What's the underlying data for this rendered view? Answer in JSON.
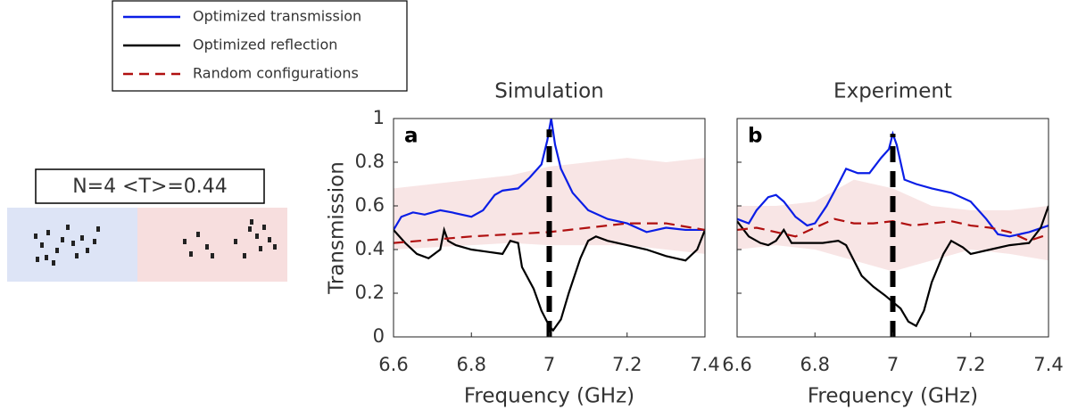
{
  "inset": {
    "label": "N=4 <T>=0.44"
  },
  "chart_data": [
    {
      "type": "line",
      "title": "Simulation",
      "label": "a",
      "x_label": "Frequency (GHz)",
      "y_label": "Transmission",
      "xlim": [
        6.6,
        7.4
      ],
      "xticks": [
        6.6,
        6.8,
        7,
        7.2,
        7.4
      ],
      "ylim": [
        0,
        1
      ],
      "yticks": [
        0,
        0.2,
        0.4,
        0.6,
        0.8,
        1
      ],
      "show_ytick_labels": true,
      "vline": {
        "x": 7,
        "y": [
          0,
          0.95
        ]
      },
      "band": {
        "color": "#f6dede",
        "x": [
          6.6,
          6.7,
          6.8,
          6.9,
          7.0,
          7.1,
          7.2,
          7.3,
          7.4
        ],
        "lower": [
          0.4,
          0.41,
          0.42,
          0.43,
          0.42,
          0.42,
          0.42,
          0.4,
          0.38
        ],
        "upper": [
          0.68,
          0.7,
          0.72,
          0.74,
          0.78,
          0.8,
          0.82,
          0.8,
          0.82
        ]
      },
      "series": [
        {
          "name": "Optimized transmission",
          "color": "#0a1ee6",
          "dashed": false,
          "x": [
            6.6,
            6.62,
            6.65,
            6.68,
            6.72,
            6.75,
            6.8,
            6.83,
            6.86,
            6.88,
            6.92,
            6.95,
            6.98,
            6.995,
            7.005,
            7.015,
            7.03,
            7.06,
            7.1,
            7.15,
            7.2,
            7.25,
            7.3,
            7.35,
            7.4
          ],
          "values": [
            0.49,
            0.55,
            0.57,
            0.56,
            0.58,
            0.57,
            0.55,
            0.58,
            0.65,
            0.67,
            0.68,
            0.73,
            0.79,
            0.9,
            1.0,
            0.88,
            0.77,
            0.66,
            0.58,
            0.54,
            0.52,
            0.48,
            0.5,
            0.49,
            0.49
          ]
        },
        {
          "name": "Optimized reflection",
          "color": "#000000",
          "dashed": false,
          "x": [
            6.6,
            6.63,
            6.66,
            6.69,
            6.72,
            6.73,
            6.74,
            6.76,
            6.8,
            6.84,
            6.88,
            6.9,
            6.92,
            6.93,
            6.96,
            6.98,
            7.0,
            7.01,
            7.03,
            7.05,
            7.08,
            7.1,
            7.12,
            7.15,
            7.2,
            7.25,
            7.3,
            7.35,
            7.38,
            7.4
          ],
          "values": [
            0.49,
            0.43,
            0.38,
            0.36,
            0.4,
            0.49,
            0.44,
            0.42,
            0.4,
            0.39,
            0.38,
            0.44,
            0.43,
            0.32,
            0.22,
            0.12,
            0.05,
            0.03,
            0.08,
            0.2,
            0.36,
            0.44,
            0.46,
            0.44,
            0.42,
            0.4,
            0.37,
            0.35,
            0.4,
            0.49
          ]
        },
        {
          "name": "Random configurations",
          "color": "#b01010",
          "dashed": true,
          "x": [
            6.6,
            6.8,
            7.0,
            7.2,
            7.3,
            7.4
          ],
          "values": [
            0.43,
            0.46,
            0.48,
            0.52,
            0.52,
            0.49
          ]
        }
      ]
    },
    {
      "type": "line",
      "title": "Experiment",
      "label": "b",
      "x_label": "Frequency (GHz)",
      "xlim": [
        6.6,
        7.4
      ],
      "xticks": [
        6.6,
        6.8,
        7,
        7.2,
        7.4
      ],
      "ylim": [
        0,
        1
      ],
      "yticks": [
        0,
        0.2,
        0.4,
        0.6,
        0.8,
        1
      ],
      "show_ytick_labels": false,
      "vline": {
        "x": 7,
        "y": [
          0,
          0.93
        ]
      },
      "band": {
        "color": "#f6dede",
        "x": [
          6.6,
          6.7,
          6.8,
          6.9,
          7.0,
          7.1,
          7.2,
          7.3,
          7.4
        ],
        "lower": [
          0.4,
          0.42,
          0.4,
          0.35,
          0.3,
          0.35,
          0.4,
          0.38,
          0.35
        ],
        "upper": [
          0.6,
          0.6,
          0.62,
          0.72,
          0.68,
          0.6,
          0.58,
          0.58,
          0.6
        ]
      },
      "series": [
        {
          "color": "#0a1ee6",
          "dashed": false,
          "x": [
            6.6,
            6.63,
            6.65,
            6.68,
            6.7,
            6.72,
            6.75,
            6.78,
            6.8,
            6.83,
            6.86,
            6.88,
            6.91,
            6.94,
            6.97,
            6.99,
            7.0,
            7.01,
            7.03,
            7.06,
            7.1,
            7.15,
            7.2,
            7.24,
            7.27,
            7.3,
            7.35,
            7.4
          ],
          "values": [
            0.54,
            0.52,
            0.58,
            0.64,
            0.65,
            0.62,
            0.55,
            0.51,
            0.52,
            0.6,
            0.7,
            0.77,
            0.75,
            0.75,
            0.82,
            0.86,
            0.93,
            0.88,
            0.72,
            0.7,
            0.68,
            0.66,
            0.62,
            0.54,
            0.47,
            0.46,
            0.48,
            0.51
          ]
        },
        {
          "color": "#000000",
          "dashed": false,
          "x": [
            6.6,
            6.63,
            6.66,
            6.68,
            6.7,
            6.72,
            6.74,
            6.78,
            6.82,
            6.86,
            6.88,
            6.9,
            6.92,
            6.95,
            6.98,
            7.0,
            7.02,
            7.04,
            7.06,
            7.08,
            7.1,
            7.13,
            7.15,
            7.18,
            7.2,
            7.25,
            7.3,
            7.35,
            7.38,
            7.4
          ],
          "values": [
            0.53,
            0.46,
            0.43,
            0.42,
            0.44,
            0.49,
            0.43,
            0.43,
            0.43,
            0.44,
            0.42,
            0.35,
            0.28,
            0.23,
            0.19,
            0.16,
            0.13,
            0.07,
            0.05,
            0.12,
            0.25,
            0.38,
            0.44,
            0.41,
            0.38,
            0.4,
            0.42,
            0.43,
            0.5,
            0.6
          ]
        },
        {
          "color": "#b01010",
          "dashed": true,
          "x": [
            6.6,
            6.65,
            6.7,
            6.75,
            6.8,
            6.85,
            6.9,
            6.95,
            7.0,
            7.05,
            7.1,
            7.15,
            7.2,
            7.25,
            7.3,
            7.35,
            7.4
          ],
          "values": [
            0.49,
            0.5,
            0.48,
            0.46,
            0.5,
            0.54,
            0.52,
            0.52,
            0.53,
            0.51,
            0.52,
            0.53,
            0.51,
            0.5,
            0.48,
            0.44,
            0.47
          ]
        }
      ]
    }
  ]
}
